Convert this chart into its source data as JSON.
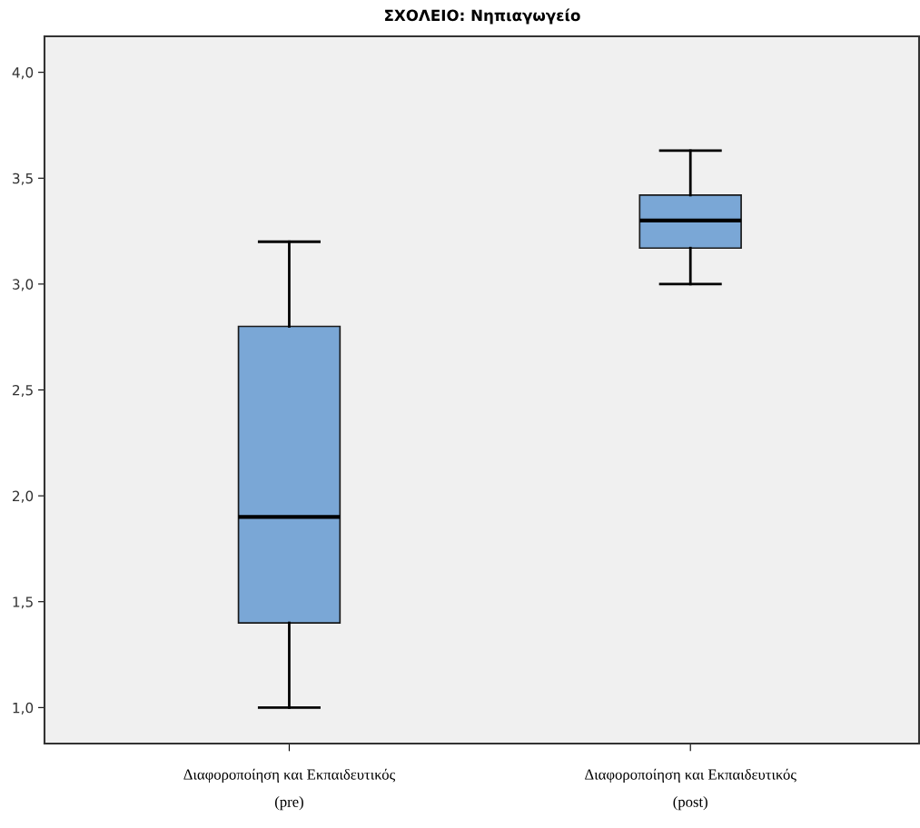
{
  "chart_data": {
    "type": "box",
    "title": "ΣΧΟΛΕΙΟ: Νηπιαγωγείο",
    "categories": [
      "Διαφοροποίηση και Εκπαιδευτικός\n(pre)",
      "Διαφοροποίηση και Εκπαιδευτικός\n(post)"
    ],
    "series": [
      {
        "color": "#7aa7d6",
        "boxes": [
          {
            "low": 1.0,
            "q1": 1.4,
            "median": 1.9,
            "q3": 2.8,
            "high": 3.2
          },
          {
            "low": 3.0,
            "q1": 3.17,
            "median": 3.3,
            "q3": 3.42,
            "high": 3.63
          }
        ]
      }
    ],
    "ylim": [
      0.83,
      4.17
    ],
    "yticks": [
      {
        "value": 1.0,
        "label": "1,0"
      },
      {
        "value": 1.5,
        "label": "1,5"
      },
      {
        "value": 2.0,
        "label": "2,0"
      },
      {
        "value": 2.5,
        "label": "2,5"
      },
      {
        "value": 3.0,
        "label": "3,0"
      },
      {
        "value": 3.5,
        "label": "3,5"
      },
      {
        "value": 4.0,
        "label": "4,0"
      }
    ],
    "grid": false,
    "legend": false
  }
}
